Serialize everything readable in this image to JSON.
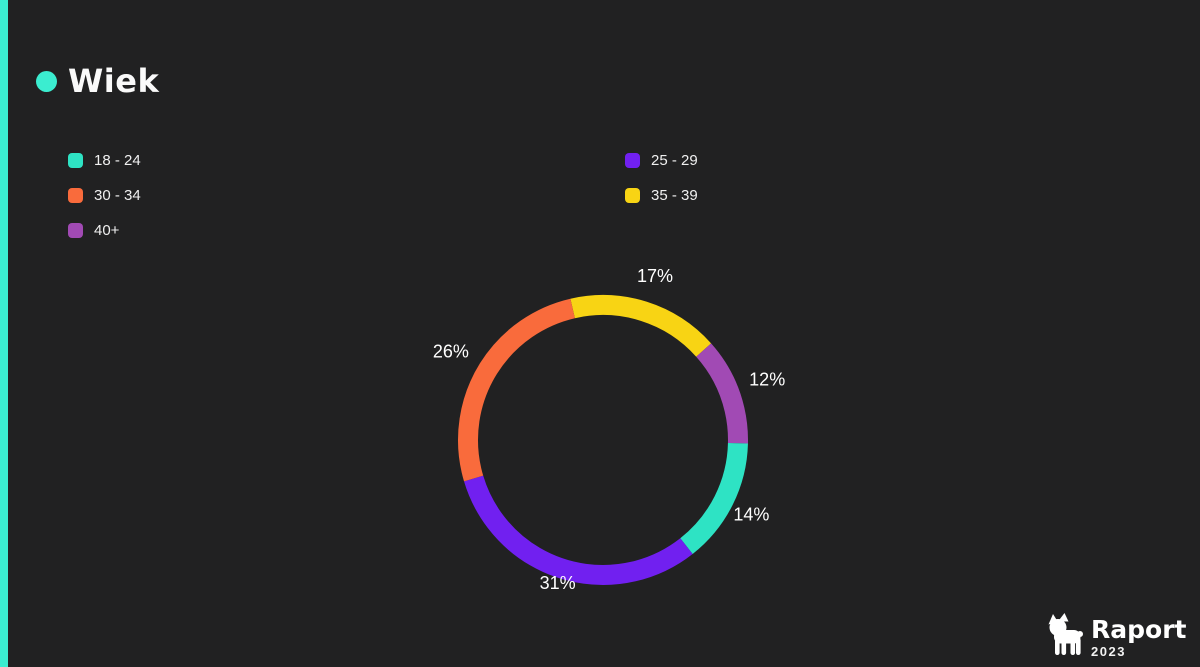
{
  "page": {
    "title": "Wiek",
    "accent_color": "#3bedd0",
    "background_color": "#212122"
  },
  "legend": {
    "columns": [
      {
        "items": [
          {
            "label": "18 - 24",
            "color": "#2ee3c4"
          },
          {
            "label": "30 - 34",
            "color": "#f96b3c"
          },
          {
            "label": "40+",
            "color": "#a14ab4"
          }
        ]
      },
      {
        "items": [
          {
            "label": "25 - 29",
            "color": "#7120f0"
          },
          {
            "label": "35 - 39",
            "color": "#f8d414"
          }
        ]
      }
    ]
  },
  "chart_data": {
    "type": "pie",
    "style": "donut",
    "title": "Wiek",
    "unit": "%",
    "direction": "clockwise",
    "start_angle_deg": -13,
    "legend_position": "top-left",
    "segments": [
      {
        "category": "35 - 39",
        "value": 17,
        "label": "17%",
        "color": "#f8d414"
      },
      {
        "category": "40+",
        "value": 12,
        "label": "12%",
        "color": "#a14ab4"
      },
      {
        "category": "18 - 24",
        "value": 14,
        "label": "14%",
        "color": "#2ee3c4"
      },
      {
        "category": "25 - 29",
        "value": 31,
        "label": "31%",
        "color": "#7120f0"
      },
      {
        "category": "30 - 34",
        "value": 26,
        "label": "26%",
        "color": "#f96b3c"
      }
    ]
  },
  "footer": {
    "brand": "Raport",
    "year": "2023",
    "logo_icon": "french-bulldog-icon"
  }
}
